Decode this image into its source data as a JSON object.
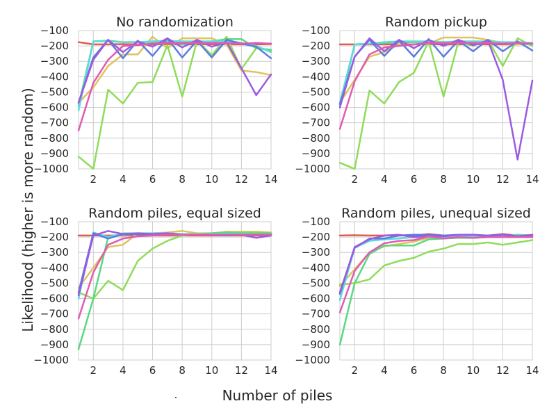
{
  "figure": {
    "xlabel": "Number of piles",
    "ylabel": "Likelihood (higher is more random)",
    "stray_mark": "."
  },
  "colors": {
    "grid": "#cccccc",
    "spine": "#cccccc",
    "series": [
      "#e05a4e",
      "#e0c25a",
      "#8fdc5a",
      "#5ad880",
      "#5adcdc",
      "#5a7ce0",
      "#9c5ae0",
      "#e05ab4"
    ]
  },
  "chart_data": [
    {
      "type": "line",
      "title": "No randomization",
      "xlim": [
        1,
        14
      ],
      "ylim": [
        -1000,
        -100
      ],
      "xticks": [
        2,
        4,
        6,
        8,
        10,
        12,
        14
      ],
      "yticks": [
        -100,
        -200,
        -300,
        -400,
        -500,
        -600,
        -700,
        -800,
        -900,
        -1000
      ],
      "x": [
        1,
        2,
        3,
        4,
        5,
        6,
        7,
        8,
        9,
        10,
        11,
        12,
        13,
        14
      ],
      "series": [
        {
          "color": "#e05a4e",
          "values": [
            -175,
            -190,
            -190,
            -188,
            -190,
            -190,
            -188,
            -190,
            -190,
            -188,
            -190,
            -190,
            -190,
            -188
          ]
        },
        {
          "color": "#e0c25a",
          "values": [
            -570,
            -470,
            -330,
            -255,
            -255,
            -140,
            -215,
            -150,
            -150,
            -150,
            -190,
            -360,
            -370,
            -390
          ]
        },
        {
          "color": "#8fdc5a",
          "values": [
            -920,
            -1000,
            -485,
            -575,
            -440,
            -435,
            -195,
            -530,
            -165,
            -260,
            -140,
            -350,
            -215,
            -230
          ]
        },
        {
          "color": "#5ad880",
          "values": [
            -590,
            -170,
            -165,
            -175,
            -175,
            -175,
            -170,
            -190,
            -175,
            -170,
            -155,
            -155,
            -215,
            -225
          ]
        },
        {
          "color": "#5adcdc",
          "values": [
            -620,
            -170,
            -170,
            -175,
            -175,
            -170,
            -165,
            -170,
            -170,
            -170,
            -165,
            -180,
            -200,
            -240
          ]
        },
        {
          "color": "#5a7ce0",
          "values": [
            -570,
            -275,
            -160,
            -280,
            -165,
            -265,
            -150,
            -275,
            -165,
            -275,
            -160,
            -185,
            -205,
            -280
          ]
        },
        {
          "color": "#9c5ae0",
          "values": [
            -570,
            -290,
            -160,
            -240,
            -170,
            -205,
            -150,
            -210,
            -160,
            -205,
            -175,
            -345,
            -520,
            -385
          ]
        },
        {
          "color": "#e05ab4",
          "values": [
            -750,
            -440,
            -290,
            -200,
            -195,
            -185,
            -180,
            -180,
            -180,
            -180,
            -180,
            -185,
            -180,
            -185
          ]
        }
      ]
    },
    {
      "type": "line",
      "title": "Random pickup",
      "xlim": [
        1,
        14
      ],
      "ylim": [
        -1000,
        -100
      ],
      "xticks": [
        2,
        4,
        6,
        8,
        10,
        12,
        14
      ],
      "yticks": [
        -100,
        -200,
        -300,
        -400,
        -500,
        -600,
        -700,
        -800,
        -900,
        -1000
      ],
      "x": [
        1,
        2,
        3,
        4,
        5,
        6,
        7,
        8,
        9,
        10,
        11,
        12,
        13,
        14
      ],
      "series": [
        {
          "color": "#e05a4e",
          "values": [
            -190,
            -190,
            -190,
            -190,
            -190,
            -190,
            -188,
            -190,
            -190,
            -188,
            -190,
            -190,
            -190,
            -188
          ]
        },
        {
          "color": "#e0c25a",
          "values": [
            -570,
            -420,
            -270,
            -240,
            -190,
            -170,
            -185,
            -145,
            -145,
            -145,
            -160,
            -180,
            -190,
            -185
          ]
        },
        {
          "color": "#8fdc5a",
          "values": [
            -960,
            -1000,
            -490,
            -575,
            -435,
            -375,
            -170,
            -530,
            -175,
            -200,
            -160,
            -330,
            -150,
            -200
          ]
        },
        {
          "color": "#5ad880",
          "values": [
            -600,
            -190,
            -185,
            -180,
            -175,
            -175,
            -175,
            -175,
            -175,
            -180,
            -175,
            -180,
            -180,
            -190
          ]
        },
        {
          "color": "#5adcdc",
          "values": [
            -570,
            -190,
            -185,
            -175,
            -170,
            -170,
            -170,
            -175,
            -170,
            -170,
            -170,
            -175,
            -175,
            -180
          ]
        },
        {
          "color": "#5a7ce0",
          "values": [
            -580,
            -270,
            -160,
            -265,
            -165,
            -270,
            -155,
            -270,
            -165,
            -235,
            -160,
            -235,
            -170,
            -230
          ]
        },
        {
          "color": "#9c5ae0",
          "values": [
            -600,
            -270,
            -150,
            -235,
            -160,
            -215,
            -160,
            -200,
            -160,
            -195,
            -165,
            -420,
            -940,
            -425
          ]
        },
        {
          "color": "#e05ab4",
          "values": [
            -740,
            -430,
            -255,
            -210,
            -200,
            -190,
            -180,
            -180,
            -180,
            -180,
            -180,
            -185,
            -180,
            -185
          ]
        }
      ]
    },
    {
      "type": "line",
      "title": "Random piles, equal sized",
      "xlim": [
        1,
        14
      ],
      "ylim": [
        -1000,
        -100
      ],
      "xticks": [
        2,
        4,
        6,
        8,
        10,
        12,
        14
      ],
      "yticks": [
        -100,
        -200,
        -300,
        -400,
        -500,
        -600,
        -700,
        -800,
        -900,
        -1000
      ],
      "x": [
        1,
        2,
        3,
        4,
        5,
        6,
        7,
        8,
        9,
        10,
        11,
        12,
        13,
        14
      ],
      "series": [
        {
          "color": "#e05a4e",
          "values": [
            -190,
            -190,
            -190,
            -190,
            -190,
            -190,
            -190,
            -190,
            -190,
            -190,
            -190,
            -190,
            -190,
            -190
          ]
        },
        {
          "color": "#e0c25a",
          "values": [
            -530,
            -400,
            -265,
            -250,
            -175,
            -175,
            -170,
            -160,
            -175,
            -175,
            -165,
            -165,
            -165,
            -170
          ]
        },
        {
          "color": "#8fdc5a",
          "values": [
            -560,
            -600,
            -485,
            -545,
            -355,
            -275,
            -225,
            -190,
            -180,
            -180,
            -170,
            -170,
            -170,
            -175
          ]
        },
        {
          "color": "#5ad880",
          "values": [
            -930,
            -600,
            -200,
            -185,
            -180,
            -180,
            -175,
            -180,
            -180,
            -175,
            -170,
            -175,
            -175,
            -175
          ]
        },
        {
          "color": "#5adcdc",
          "values": [
            -600,
            -170,
            -200,
            -175,
            -175,
            -175,
            -175,
            -180,
            -180,
            -180,
            -180,
            -180,
            -185,
            -185
          ]
        },
        {
          "color": "#5a7ce0",
          "values": [
            -560,
            -175,
            -210,
            -180,
            -180,
            -180,
            -180,
            -185,
            -185,
            -185,
            -190,
            -185,
            -185,
            -185
          ]
        },
        {
          "color": "#9c5ae0",
          "values": [
            -580,
            -190,
            -160,
            -180,
            -175,
            -180,
            -175,
            -185,
            -185,
            -185,
            -185,
            -185,
            -205,
            -190
          ]
        },
        {
          "color": "#e05ab4",
          "values": [
            -730,
            -430,
            -250,
            -210,
            -195,
            -190,
            -185,
            -185,
            -185,
            -185,
            -185,
            -185,
            -185,
            -185
          ]
        }
      ]
    },
    {
      "type": "line",
      "title": "Random piles, unequal sized",
      "xlim": [
        1,
        14
      ],
      "ylim": [
        -1000,
        -100
      ],
      "xticks": [
        2,
        4,
        6,
        8,
        10,
        12,
        14
      ],
      "yticks": [
        -100,
        -200,
        -300,
        -400,
        -500,
        -600,
        -700,
        -800,
        -900,
        -1000
      ],
      "x": [
        1,
        2,
        3,
        4,
        5,
        6,
        7,
        8,
        9,
        10,
        11,
        12,
        13,
        14
      ],
      "series": [
        {
          "color": "#e05a4e",
          "values": [
            -190,
            -188,
            -190,
            -190,
            -188,
            -190,
            -180,
            -190,
            -190,
            -188,
            -190,
            -180,
            -190,
            -188
          ]
        },
        {
          "color": "#e0c25a",
          "values": [
            -520,
            -410,
            -300,
            -260,
            -245,
            -230,
            -205,
            -200,
            -200,
            -200,
            -195,
            -190,
            -195,
            -195
          ]
        },
        {
          "color": "#8fdc5a",
          "values": [
            -510,
            -500,
            -475,
            -385,
            -355,
            -335,
            -295,
            -275,
            -245,
            -245,
            -235,
            -250,
            -235,
            -220
          ]
        },
        {
          "color": "#5ad880",
          "values": [
            -900,
            -500,
            -310,
            -255,
            -255,
            -255,
            -215,
            -210,
            -205,
            -205,
            -200,
            -195,
            -185,
            -190
          ]
        },
        {
          "color": "#5adcdc",
          "values": [
            -610,
            -270,
            -225,
            -215,
            -210,
            -200,
            -200,
            -200,
            -195,
            -195,
            -195,
            -195,
            -190,
            -190
          ]
        },
        {
          "color": "#5a7ce0",
          "values": [
            -560,
            -270,
            -210,
            -210,
            -190,
            -185,
            -185,
            -190,
            -185,
            -185,
            -190,
            -185,
            -195,
            -190
          ]
        },
        {
          "color": "#9c5ae0",
          "values": [
            -570,
            -265,
            -215,
            -190,
            -185,
            -200,
            -190,
            -195,
            -185,
            -185,
            -195,
            -185,
            -195,
            -185
          ]
        },
        {
          "color": "#e05ab4",
          "values": [
            -690,
            -420,
            -300,
            -240,
            -225,
            -220,
            -195,
            -210,
            -200,
            -205,
            -200,
            -200,
            -200,
            -200
          ]
        }
      ]
    }
  ]
}
